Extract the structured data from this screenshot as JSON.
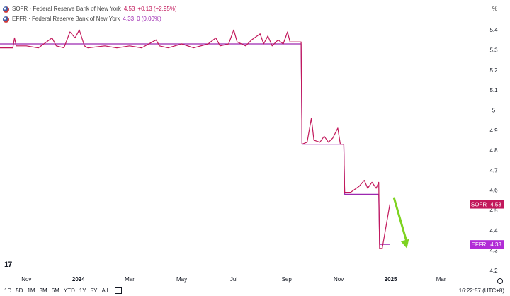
{
  "legend": [
    {
      "name": "SOFR · Federal Reserve Bank of New York",
      "value": "4.53",
      "change": "+0.13 (+2.95%)",
      "color": "#c2185b"
    },
    {
      "name": "EFFR · Federal Reserve Bank of New York",
      "value": "4.33",
      "change": "0 (0.00%)",
      "color": "#9c27b0"
    }
  ],
  "unit_label": "%",
  "time_ranges": [
    "1D",
    "5D",
    "1M",
    "3M",
    "6M",
    "YTD",
    "1Y",
    "5Y",
    "All"
  ],
  "time_readout": "16:22:57 (UTC+8)",
  "logo_text": "17",
  "chart_data": {
    "type": "line",
    "title": "",
    "xlabel": "",
    "ylabel": "",
    "ylim": [
      4.2,
      5.45
    ],
    "y_ticks": [
      "5.4",
      "5.3",
      "5.2",
      "5.1",
      "5",
      "4.9",
      "4.8",
      "4.7",
      "4.6",
      "4.5",
      "4.4",
      "4.3",
      "4.2"
    ],
    "x_ticks": [
      {
        "label": "Nov",
        "date": "2023-11-01",
        "bold": false
      },
      {
        "label": "2024",
        "date": "2024-01-01",
        "bold": true
      },
      {
        "label": "Mar",
        "date": "2024-03-01",
        "bold": false
      },
      {
        "label": "May",
        "date": "2024-05-01",
        "bold": false
      },
      {
        "label": "Jul",
        "date": "2024-07-01",
        "bold": false
      },
      {
        "label": "Sep",
        "date": "2024-09-01",
        "bold": false
      },
      {
        "label": "Nov",
        "date": "2024-11-01",
        "bold": false
      },
      {
        "label": "2025",
        "date": "2025-01-01",
        "bold": true
      },
      {
        "label": "Mar",
        "date": "2025-03-01",
        "bold": false
      }
    ],
    "x_range": [
      "2023-10-01",
      "2025-04-01"
    ],
    "grid": false,
    "series": [
      {
        "name": "SOFR",
        "color": "#c2185b",
        "points": [
          [
            "2023-10-01",
            5.31
          ],
          [
            "2023-10-16",
            5.31
          ],
          [
            "2023-10-18",
            5.36
          ],
          [
            "2023-10-20",
            5.32
          ],
          [
            "2023-11-01",
            5.32
          ],
          [
            "2023-11-15",
            5.31
          ],
          [
            "2023-12-01",
            5.36
          ],
          [
            "2023-12-06",
            5.32
          ],
          [
            "2023-12-15",
            5.31
          ],
          [
            "2023-12-22",
            5.39
          ],
          [
            "2023-12-28",
            5.36
          ],
          [
            "2024-01-02",
            5.4
          ],
          [
            "2024-01-05",
            5.36
          ],
          [
            "2024-01-08",
            5.32
          ],
          [
            "2024-01-12",
            5.31
          ],
          [
            "2024-02-01",
            5.32
          ],
          [
            "2024-02-15",
            5.31
          ],
          [
            "2024-03-01",
            5.32
          ],
          [
            "2024-03-15",
            5.31
          ],
          [
            "2024-04-01",
            5.35
          ],
          [
            "2024-04-05",
            5.32
          ],
          [
            "2024-04-15",
            5.31
          ],
          [
            "2024-05-01",
            5.33
          ],
          [
            "2024-05-15",
            5.31
          ],
          [
            "2024-06-01",
            5.33
          ],
          [
            "2024-06-10",
            5.36
          ],
          [
            "2024-06-15",
            5.32
          ],
          [
            "2024-06-25",
            5.33
          ],
          [
            "2024-07-01",
            5.4
          ],
          [
            "2024-07-05",
            5.34
          ],
          [
            "2024-07-15",
            5.32
          ],
          [
            "2024-07-22",
            5.35
          ],
          [
            "2024-08-01",
            5.38
          ],
          [
            "2024-08-05",
            5.33
          ],
          [
            "2024-08-10",
            5.37
          ],
          [
            "2024-08-15",
            5.32
          ],
          [
            "2024-08-22",
            5.35
          ],
          [
            "2024-08-28",
            5.33
          ],
          [
            "2024-09-02",
            5.39
          ],
          [
            "2024-09-05",
            5.34
          ],
          [
            "2024-09-18",
            5.34
          ],
          [
            "2024-09-19",
            4.83
          ],
          [
            "2024-09-25",
            4.84
          ],
          [
            "2024-09-30",
            4.96
          ],
          [
            "2024-10-03",
            4.85
          ],
          [
            "2024-10-10",
            4.84
          ],
          [
            "2024-10-15",
            4.87
          ],
          [
            "2024-10-20",
            4.84
          ],
          [
            "2024-10-25",
            4.86
          ],
          [
            "2024-10-31",
            4.91
          ],
          [
            "2024-11-03",
            4.83
          ],
          [
            "2024-11-07",
            4.83
          ],
          [
            "2024-11-08",
            4.59
          ],
          [
            "2024-11-15",
            4.59
          ],
          [
            "2024-11-25",
            4.62
          ],
          [
            "2024-12-01",
            4.65
          ],
          [
            "2024-12-05",
            4.61
          ],
          [
            "2024-12-10",
            4.64
          ],
          [
            "2024-12-15",
            4.61
          ],
          [
            "2024-12-18",
            4.64
          ],
          [
            "2024-12-19",
            4.31
          ],
          [
            "2024-12-22",
            4.31
          ],
          [
            "2024-12-31",
            4.53
          ]
        ]
      },
      {
        "name": "EFFR",
        "color": "#9c27b0",
        "points": [
          [
            "2023-10-01",
            5.33
          ],
          [
            "2024-09-18",
            5.33
          ],
          [
            "2024-09-19",
            4.83
          ],
          [
            "2024-11-07",
            4.83
          ],
          [
            "2024-11-08",
            4.58
          ],
          [
            "2024-12-18",
            4.58
          ],
          [
            "2024-12-19",
            4.33
          ],
          [
            "2024-12-31",
            4.33
          ]
        ]
      }
    ],
    "annotations": [
      {
        "type": "arrow",
        "color": "#7ed321",
        "from": [
          "2025-01-05",
          4.56
        ],
        "to": [
          "2025-01-20",
          4.31
        ]
      }
    ],
    "price_labels": [
      {
        "series": "SOFR",
        "text": "SOFR",
        "value": "4.53",
        "color": "#c2185b"
      },
      {
        "series": "EFFR",
        "text": "EFFR",
        "value": "4.33",
        "color": "#b12bd6"
      }
    ]
  }
}
